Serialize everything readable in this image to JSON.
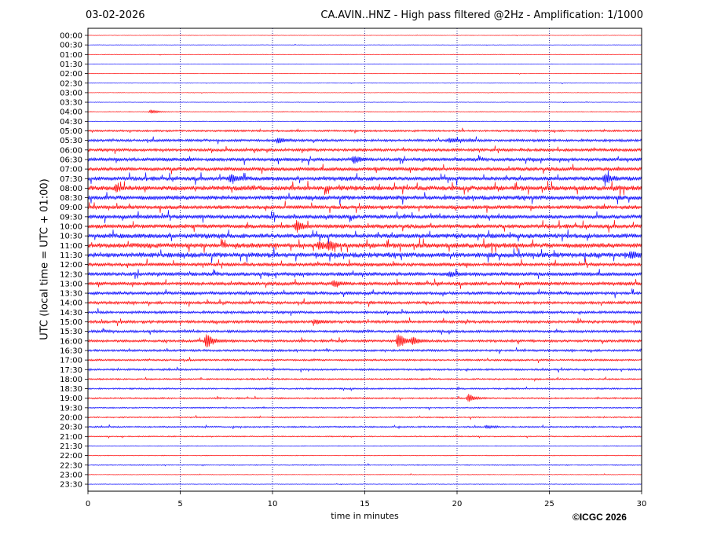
{
  "header": {
    "date": "03-02-2026",
    "title": "CA.AVIN..HNZ - High pass filtered @2Hz - Amplification: 1/1000"
  },
  "footer": {
    "copyright": "©ICGC 2026"
  },
  "chart_data": {
    "type": "line",
    "xlabel": "time in minutes",
    "ylabel": "UTC (local time = UTC + 01:00)",
    "xlim": [
      0,
      30
    ],
    "xticks": [
      0,
      5,
      10,
      15,
      20,
      25,
      30
    ],
    "grid": "vertical dotted at 5, 10, 15, 20, 25",
    "row_labels": [
      "00:00",
      "00:30",
      "01:00",
      "01:30",
      "02:00",
      "02:30",
      "03:00",
      "03:30",
      "04:00",
      "04:30",
      "05:00",
      "05:30",
      "06:00",
      "06:30",
      "07:00",
      "07:30",
      "08:00",
      "08:30",
      "09:00",
      "09:30",
      "10:00",
      "10:30",
      "11:00",
      "11:30",
      "12:00",
      "12:30",
      "13:00",
      "13:30",
      "14:00",
      "14:30",
      "15:00",
      "15:30",
      "16:00",
      "16:30",
      "17:00",
      "17:30",
      "18:00",
      "18:30",
      "19:00",
      "19:30",
      "20:00",
      "20:30",
      "21:00",
      "21:30",
      "22:00",
      "22:30",
      "23:00",
      "23:30"
    ],
    "colors": {
      "even_rows": "#ff0000",
      "odd_rows": "#0000ff"
    },
    "noise_level": [
      0.3,
      0.3,
      0.3,
      0.3,
      0.3,
      0.3,
      0.3,
      0.3,
      0.5,
      0.4,
      1.2,
      1.6,
      1.8,
      2.2,
      2.4,
      2.6,
      3.0,
      2.8,
      2.4,
      2.6,
      2.6,
      3.0,
      3.0,
      3.2,
      2.2,
      2.4,
      2.2,
      2.0,
      1.8,
      1.6,
      1.8,
      1.6,
      1.6,
      1.4,
      1.2,
      1.2,
      1.0,
      1.0,
      1.0,
      0.8,
      0.8,
      1.0,
      0.7,
      0.5,
      0.5,
      0.6,
      0.4,
      0.4
    ],
    "events": [
      {
        "row": "04:00",
        "minute": 3.4,
        "amplitude": 2.5
      },
      {
        "row": "05:30",
        "minute": 10.3,
        "amplitude": 3.5
      },
      {
        "row": "05:30",
        "minute": 19.6,
        "amplitude": 3.0
      },
      {
        "row": "06:30",
        "minute": 14.4,
        "amplitude": 4.5
      },
      {
        "row": "07:30",
        "minute": 7.7,
        "amplitude": 5.5
      },
      {
        "row": "07:30",
        "minute": 28.0,
        "amplitude": 5.5
      },
      {
        "row": "08:00",
        "minute": 1.5,
        "amplitude": 3.0
      },
      {
        "row": "10:00",
        "minute": 11.3,
        "amplitude": 6.0
      },
      {
        "row": "11:00",
        "minute": 12.5,
        "amplitude": 4.5
      },
      {
        "row": "11:00",
        "minute": 13.0,
        "amplitude": 4.5
      },
      {
        "row": "11:30",
        "minute": 29.4,
        "amplitude": 4.0
      },
      {
        "row": "12:30",
        "minute": 19.6,
        "amplitude": 3.0
      },
      {
        "row": "13:00",
        "minute": 13.3,
        "amplitude": 4.0
      },
      {
        "row": "15:00",
        "minute": 12.3,
        "amplitude": 3.0
      },
      {
        "row": "16:00",
        "minute": 6.4,
        "amplitude": 11.0
      },
      {
        "row": "16:00",
        "minute": 16.8,
        "amplitude": 11.5
      },
      {
        "row": "16:00",
        "minute": 17.6,
        "amplitude": 4.5
      },
      {
        "row": "19:00",
        "minute": 20.6,
        "amplitude": 6.0
      },
      {
        "row": "20:30",
        "minute": 21.6,
        "amplitude": 2.0
      }
    ]
  }
}
